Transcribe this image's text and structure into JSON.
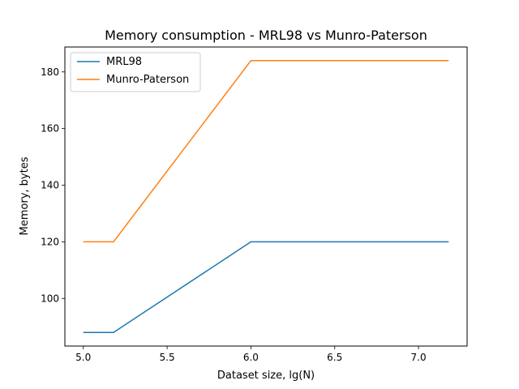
{
  "chart_data": {
    "type": "line",
    "title": "Memory consumption - MRL98 vs Munro-Paterson",
    "xlabel": "Dataset size, lg(N)",
    "ylabel": "Memory, bytes",
    "xlim": [
      4.89,
      7.29
    ],
    "ylim": [
      83.2,
      188.8
    ],
    "xticks": [
      5.0,
      5.5,
      6.0,
      6.5,
      7.0
    ],
    "xtick_labels": [
      "5.0",
      "5.5",
      "6.0",
      "6.5",
      "7.0"
    ],
    "yticks": [
      100,
      120,
      140,
      160,
      180
    ],
    "ytick_labels": [
      "100",
      "120",
      "140",
      "160",
      "180"
    ],
    "grid": false,
    "legend_position": "upper-left",
    "series": [
      {
        "name": "MRL98",
        "color": "#1f77b4",
        "x": [
          5.0,
          5.18,
          6.0,
          7.18
        ],
        "y": [
          88,
          88,
          120,
          120
        ]
      },
      {
        "name": "Munro-Paterson",
        "color": "#ff7f0e",
        "x": [
          5.0,
          5.18,
          6.0,
          7.18
        ],
        "y": [
          120,
          120,
          184,
          184
        ]
      }
    ]
  }
}
